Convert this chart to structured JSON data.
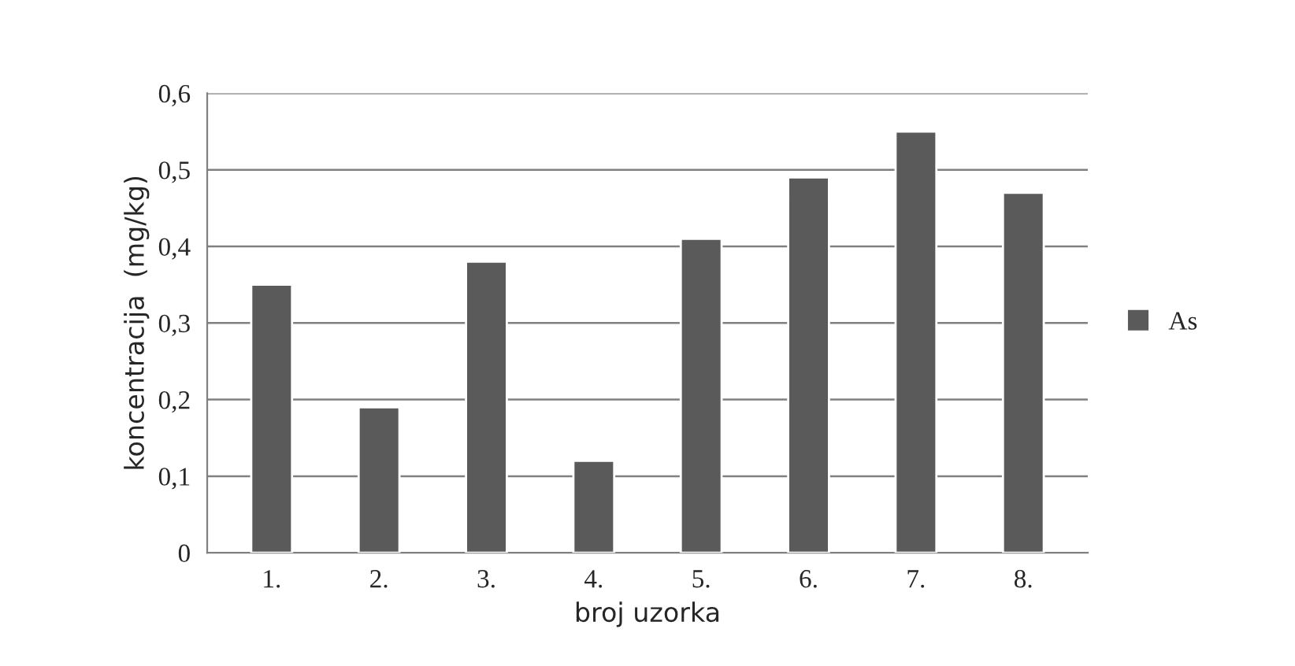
{
  "chart_data": {
    "type": "bar",
    "xlabel": "broj uzorka",
    "ylabel": "koncentracija  (mg/kg)",
    "categories": [
      "1.",
      "2.",
      "3.",
      "4.",
      "5.",
      "6.",
      "7.",
      "8."
    ],
    "series": [
      {
        "name": "As",
        "color": "#5a5a5a",
        "values": [
          0.35,
          0.19,
          0.38,
          0.12,
          0.41,
          0.49,
          0.55,
          0.47
        ]
      }
    ],
    "ylim": [
      0,
      0.6
    ],
    "yticks": [
      {
        "value": 0,
        "label": "0"
      },
      {
        "value": 0.1,
        "label": "0,1"
      },
      {
        "value": 0.2,
        "label": "0,2"
      },
      {
        "value": 0.3,
        "label": "0,3"
      },
      {
        "value": 0.4,
        "label": "0,4"
      },
      {
        "value": 0.5,
        "label": "0,5"
      },
      {
        "value": 0.6,
        "label": "0,6"
      }
    ],
    "grid": "y",
    "legend": "right"
  }
}
